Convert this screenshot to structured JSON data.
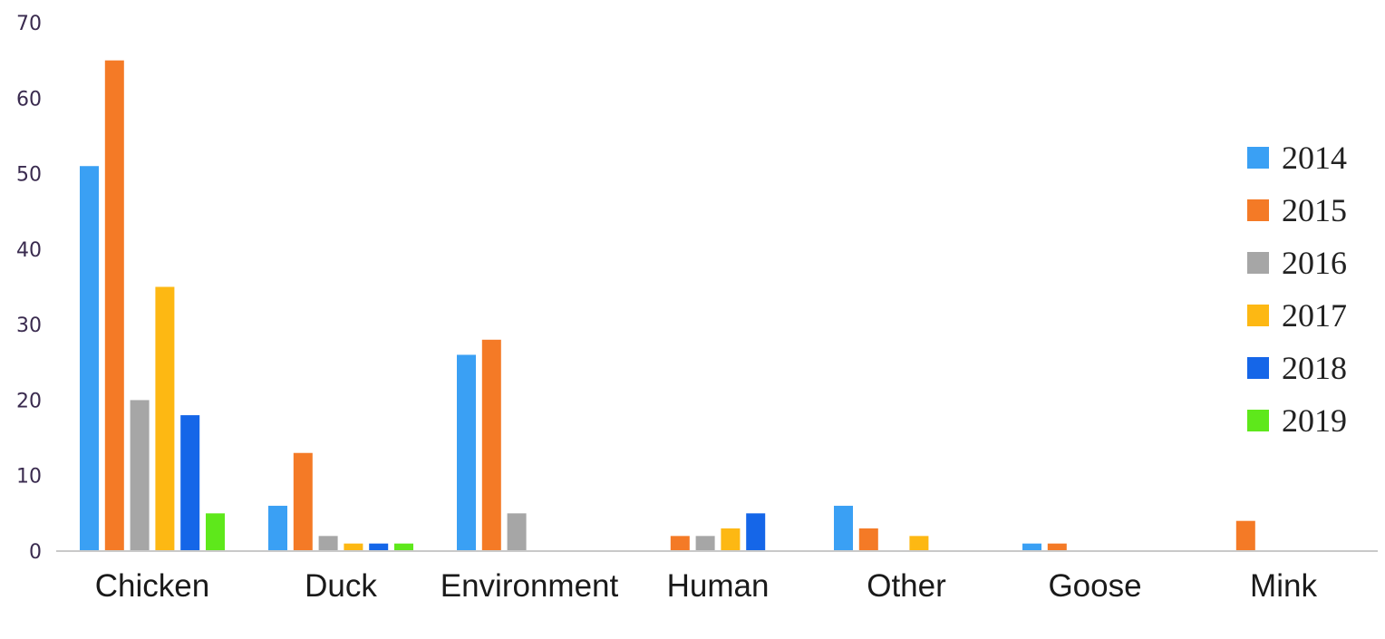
{
  "chart_data": {
    "type": "bar",
    "title": "",
    "xlabel": "",
    "ylabel": "",
    "ylim": [
      0,
      70
    ],
    "yticks": [
      0,
      10,
      20,
      30,
      40,
      50,
      60,
      70
    ],
    "grid": false,
    "legend_position": "right",
    "categories": [
      "Chicken",
      "Duck",
      "Environment",
      "Human",
      "Other",
      "Goose",
      "Mink"
    ],
    "series": [
      {
        "name": "2014",
        "color": "#3aa0f4",
        "values": [
          51,
          6,
          26,
          0,
          6,
          1,
          0
        ]
      },
      {
        "name": "2015",
        "color": "#f47a26",
        "values": [
          65,
          13,
          28,
          2,
          3,
          1,
          4
        ]
      },
      {
        "name": "2016",
        "color": "#a6a6a6",
        "values": [
          20,
          2,
          5,
          2,
          0,
          0,
          0
        ]
      },
      {
        "name": "2017",
        "color": "#fdb813",
        "values": [
          35,
          1,
          0,
          3,
          2,
          0,
          0
        ]
      },
      {
        "name": "2018",
        "color": "#1566e8",
        "values": [
          18,
          1,
          0,
          5,
          0,
          0,
          0
        ]
      },
      {
        "name": "2019",
        "color": "#5ee81b",
        "values": [
          5,
          1,
          0,
          0,
          0,
          0,
          0
        ]
      }
    ]
  }
}
